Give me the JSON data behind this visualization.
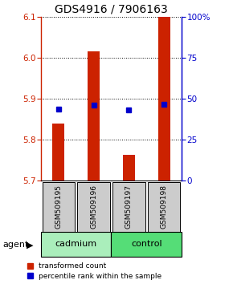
{
  "title": "GDS4916 / 7906163",
  "samples": [
    "GSM509195",
    "GSM509196",
    "GSM509197",
    "GSM509198"
  ],
  "bar_values": [
    5.84,
    6.015,
    5.762,
    6.1
  ],
  "percentile_values": [
    5.874,
    5.884,
    5.872,
    5.887
  ],
  "ylim_left": [
    5.7,
    6.1
  ],
  "ylim_right": [
    0,
    100
  ],
  "yticks_left": [
    5.7,
    5.8,
    5.9,
    6.0,
    6.1
  ],
  "yticks_right": [
    0,
    25,
    50,
    75,
    100
  ],
  "ytick_labels_right": [
    "0",
    "25",
    "50",
    "75",
    "100%"
  ],
  "bar_color": "#cc2200",
  "bar_bottom": 5.7,
  "percentile_color": "#0000cc",
  "groups": [
    {
      "label": "cadmium",
      "indices": [
        0,
        1
      ],
      "color": "#aaeebb"
    },
    {
      "label": "control",
      "indices": [
        2,
        3
      ],
      "color": "#55dd77"
    }
  ],
  "agent_label": "agent",
  "legend_items": [
    {
      "color": "#cc2200",
      "label": "transformed count"
    },
    {
      "color": "#0000cc",
      "label": "percentile rank within the sample"
    }
  ],
  "title_fontsize": 10,
  "tick_fontsize": 7.5,
  "label_fontsize": 6.5,
  "left_tick_color": "#cc2200",
  "right_tick_color": "#0000cc",
  "bar_width": 0.35
}
